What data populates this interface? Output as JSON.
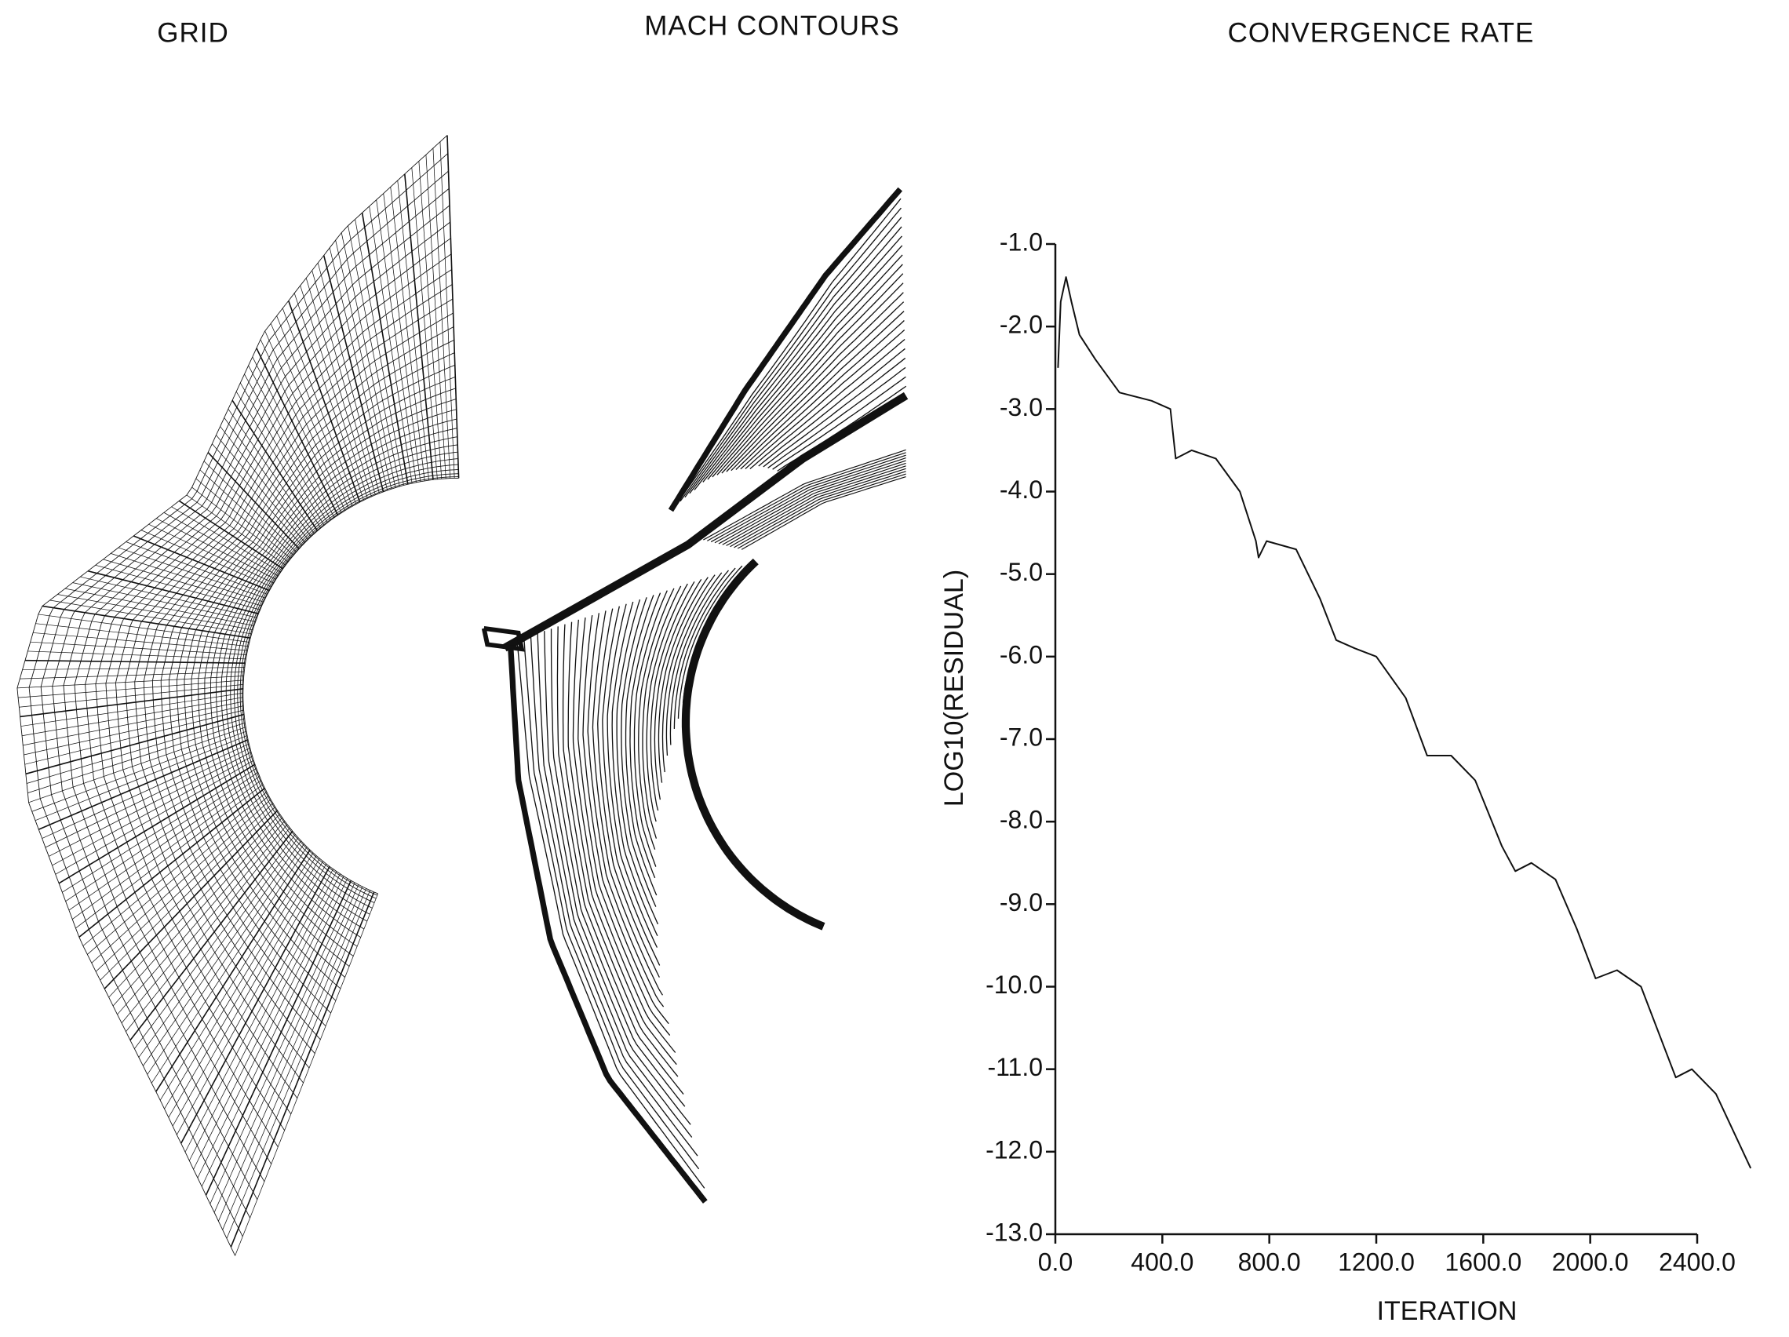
{
  "figure": {
    "grid_title": "GRID",
    "mach_title": "MACH CONTOURS"
  },
  "chart_data": {
    "type": "line",
    "title": "CONVERGENCE RATE",
    "xlabel": "ITERATION",
    "ylabel": "LOG10(RESIDUAL)",
    "xlim": [
      0,
      2400
    ],
    "xticks": [
      {
        "value": 0,
        "label": "0.0"
      },
      {
        "value": 400,
        "label": "400.0"
      },
      {
        "value": 800,
        "label": "800.0"
      },
      {
        "value": 1200,
        "label": "1200.0"
      },
      {
        "value": 1600,
        "label": "1600.0"
      },
      {
        "value": 2000,
        "label": "2000.0"
      },
      {
        "value": 2400,
        "label": "2400.0"
      }
    ],
    "ylim": [
      -13,
      -1
    ],
    "yticks": [
      {
        "value": -1,
        "label": "-1.0"
      },
      {
        "value": -2,
        "label": "-2.0"
      },
      {
        "value": -3,
        "label": "-3.0"
      },
      {
        "value": -4,
        "label": "-4.0"
      },
      {
        "value": -5,
        "label": "-5.0"
      },
      {
        "value": -6,
        "label": "-6.0"
      },
      {
        "value": -7,
        "label": "-7.0"
      },
      {
        "value": -8,
        "label": "-8.0"
      },
      {
        "value": -9,
        "label": "-9.0"
      },
      {
        "value": -10,
        "label": "-10.0"
      },
      {
        "value": -11,
        "label": "-11.0"
      },
      {
        "value": -12,
        "label": "-12.0"
      },
      {
        "value": -13,
        "label": "-13.0"
      }
    ],
    "series": [
      {
        "name": "residual",
        "color": "#111111",
        "x": [
          10,
          20,
          40,
          60,
          90,
          150,
          240,
          360,
          430,
          450,
          510,
          600,
          690,
          750,
          760,
          790,
          900,
          990,
          1050,
          1120,
          1200,
          1310,
          1390,
          1480,
          1570,
          1670,
          1720,
          1780,
          1870,
          1950,
          2020,
          2100,
          2190,
          2320,
          2380,
          2470,
          2600
        ],
        "values": [
          -2.5,
          -1.7,
          -1.4,
          -1.7,
          -2.1,
          -2.4,
          -2.8,
          -2.9,
          -3.0,
          -3.6,
          -3.5,
          -3.6,
          -4.0,
          -4.6,
          -4.8,
          -4.6,
          -4.7,
          -5.3,
          -5.8,
          -5.9,
          -6.0,
          -6.5,
          -7.2,
          -7.2,
          -7.5,
          -8.3,
          -8.6,
          -8.5,
          -8.7,
          -9.3,
          -9.9,
          -9.8,
          -10.0,
          -11.1,
          -11.0,
          -11.3,
          -12.2
        ]
      }
    ]
  }
}
